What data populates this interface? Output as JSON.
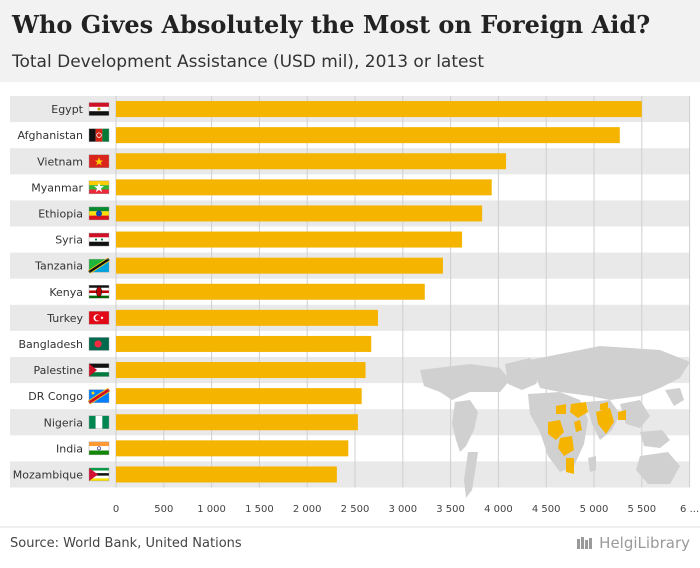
{
  "title": "Who Gives Absolutely the Most on Foreign Aid?",
  "subtitle": "Total Development Assistance (USD mil), 2013 or latest",
  "source": "Source: World Bank, United Nations",
  "brand": "HelgiLibrary",
  "colors": {
    "bar": "#f5b400",
    "row_alt": "#e9e9e9",
    "map_land": "#d0d0d0",
    "map_highlight": "#f5b400"
  },
  "chart_data": {
    "type": "bar",
    "orientation": "horizontal",
    "title": "Who Gives Absolutely the Most on Foreign Aid?",
    "subtitle": "Total Development Assistance (USD mil), 2013 or latest",
    "xlabel": "",
    "ylabel": "",
    "xlim": [
      0,
      6000
    ],
    "grid": true,
    "categories": [
      "Egypt",
      "Afghanistan",
      "Vietnam",
      "Myanmar",
      "Ethiopia",
      "Syria",
      "Tanzania",
      "Kenya",
      "Turkey",
      "Bangladesh",
      "Palestine",
      "DR Congo",
      "Nigeria",
      "India",
      "Mozambique"
    ],
    "values": [
      5500,
      5270,
      4080,
      3930,
      3830,
      3620,
      3420,
      3230,
      2740,
      2670,
      2610,
      2570,
      2530,
      2430,
      2310
    ],
    "tick_labels": [
      "0",
      "500",
      "1 000",
      "1 500",
      "2 000",
      "2 500",
      "3 000",
      "3 500",
      "4 000",
      "4 500",
      "5 000",
      "5 500",
      "6 ..."
    ]
  }
}
